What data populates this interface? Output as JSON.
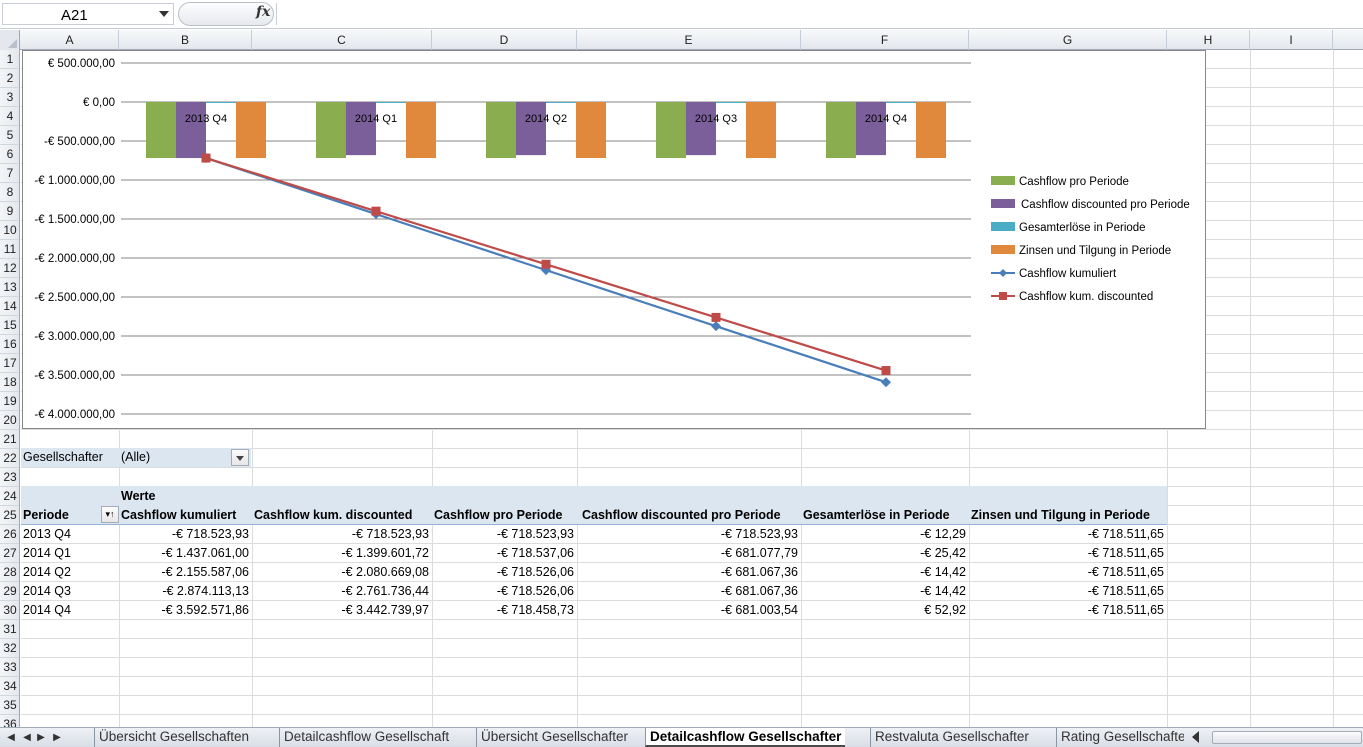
{
  "name_box": {
    "value": "A21"
  },
  "formula_bar": {
    "fx_label": "fx",
    "value": ""
  },
  "columns": [
    "A",
    "B",
    "C",
    "D",
    "E",
    "F",
    "G",
    "H",
    "I"
  ],
  "rows": [
    "1",
    "2",
    "3",
    "4",
    "5",
    "6",
    "7",
    "8",
    "9",
    "10",
    "11",
    "12",
    "13",
    "14",
    "15",
    "16",
    "17",
    "18",
    "19",
    "20",
    "21",
    "22",
    "23",
    "24",
    "25",
    "26",
    "27",
    "28",
    "29",
    "30",
    "31",
    "32",
    "33",
    "34",
    "35",
    "36"
  ],
  "colors": {
    "cashflow_pro_periode": "#8aad4f",
    "cashflow_discounted": "#7b5f9a",
    "gesamterloese": "#4bacc6",
    "zinsen_tilgung": "#e0893c",
    "cashflow_kumuliert": "#4a7ebb",
    "cashflow_kum_discounted": "#be4b48",
    "pivot_header": "#dce6f1"
  },
  "chart_data": {
    "type": "bar",
    "categories": [
      "2013 Q4",
      "2014 Q1",
      "2014 Q2",
      "2014 Q3",
      "2014 Q4"
    ],
    "ylim": [
      -4000000,
      500000
    ],
    "yticks": [
      500000,
      0,
      -500000,
      -1000000,
      -1500000,
      -2000000,
      -2500000,
      -3000000,
      -3500000,
      -4000000
    ],
    "ytick_labels": [
      "€ 500.000,00",
      "€ 0,00",
      "-€ 500.000,00",
      "-€ 1.000.000,00",
      "-€ 1.500.000,00",
      "-€ 2.000.000,00",
      "-€ 2.500.000,00",
      "-€ 3.000.000,00",
      "-€ 3.500.000,00",
      "-€ 4.000.000,00"
    ],
    "grid": true,
    "legend_position": "right",
    "series": [
      {
        "name": "Cashflow pro Periode",
        "kind": "bar",
        "color": "#8aad4f",
        "values": [
          -718523.93,
          -718537.06,
          -718526.06,
          -718526.06,
          -718458.73
        ]
      },
      {
        "name": "Cashflow discounted pro Periode",
        "kind": "bar",
        "color": "#7b5f9a",
        "values": [
          -718523.93,
          -681077.79,
          -681067.36,
          -681067.36,
          -681003.54
        ]
      },
      {
        "name": "Gesamterlöse in Periode",
        "kind": "bar",
        "color": "#4bacc6",
        "values": [
          -12.29,
          -25.42,
          -14.42,
          -14.42,
          52.92
        ]
      },
      {
        "name": "Zinsen und Tilgung in Periode",
        "kind": "bar",
        "color": "#e0893c",
        "values": [
          -718511.65,
          -718511.65,
          -718511.65,
          -718511.65,
          -718511.65
        ]
      },
      {
        "name": "Cashflow kumuliert",
        "kind": "line",
        "marker": "diamond",
        "color": "#4a7ebb",
        "values": [
          -718523.93,
          -1437061.0,
          -2155587.06,
          -2874113.13,
          -3592571.86
        ]
      },
      {
        "name": "Cashflow kum. discounted",
        "kind": "line",
        "marker": "square",
        "color": "#be4b48",
        "values": [
          -718523.93,
          -1399601.72,
          -2080669.08,
          -2761736.44,
          -3442739.97
        ]
      }
    ]
  },
  "pivot": {
    "filter_label": "Gesellschafter",
    "filter_value": "(Alle)",
    "werte_label": "Werte",
    "row_header": "Periode",
    "headers": [
      "Cashflow kumuliert",
      "Cashflow kum. discounted",
      "Cashflow pro Periode",
      "Cashflow discounted pro Periode",
      "Gesamterlöse in Periode",
      "Zinsen und Tilgung in Periode"
    ],
    "rows": [
      {
        "periode": "2013 Q4",
        "values": [
          "-€ 718.523,93",
          "-€ 718.523,93",
          "-€ 718.523,93",
          "-€ 718.523,93",
          "-€ 12,29",
          "-€ 718.511,65"
        ]
      },
      {
        "periode": "2014 Q1",
        "values": [
          "-€ 1.437.061,00",
          "-€ 1.399.601,72",
          "-€ 718.537,06",
          "-€ 681.077,79",
          "-€ 25,42",
          "-€ 718.511,65"
        ]
      },
      {
        "periode": "2014 Q2",
        "values": [
          "-€ 2.155.587,06",
          "-€ 2.080.669,08",
          "-€ 718.526,06",
          "-€ 681.067,36",
          "-€ 14,42",
          "-€ 718.511,65"
        ]
      },
      {
        "periode": "2014 Q3",
        "values": [
          "-€ 2.874.113,13",
          "-€ 2.761.736,44",
          "-€ 718.526,06",
          "-€ 681.067,36",
          "-€ 14,42",
          "-€ 718.511,65"
        ]
      },
      {
        "periode": "2014 Q4",
        "values": [
          "-€ 3.592.571,86",
          "-€ 3.442.739,97",
          "-€ 718.458,73",
          "-€ 681.003,54",
          "€ 52,92",
          "-€ 718.511,65"
        ]
      }
    ]
  },
  "sheet_tabs": {
    "tabs": [
      "Übersicht Gesellschaften",
      "Detailcashflow Gesellschaft",
      "Übersicht Gesellschafter",
      "Detailcashflow Gesellschafter",
      "Restvaluta Gesellschafter",
      "Rating Gesellschafte"
    ],
    "active": "Detailcashflow Gesellschafter"
  }
}
